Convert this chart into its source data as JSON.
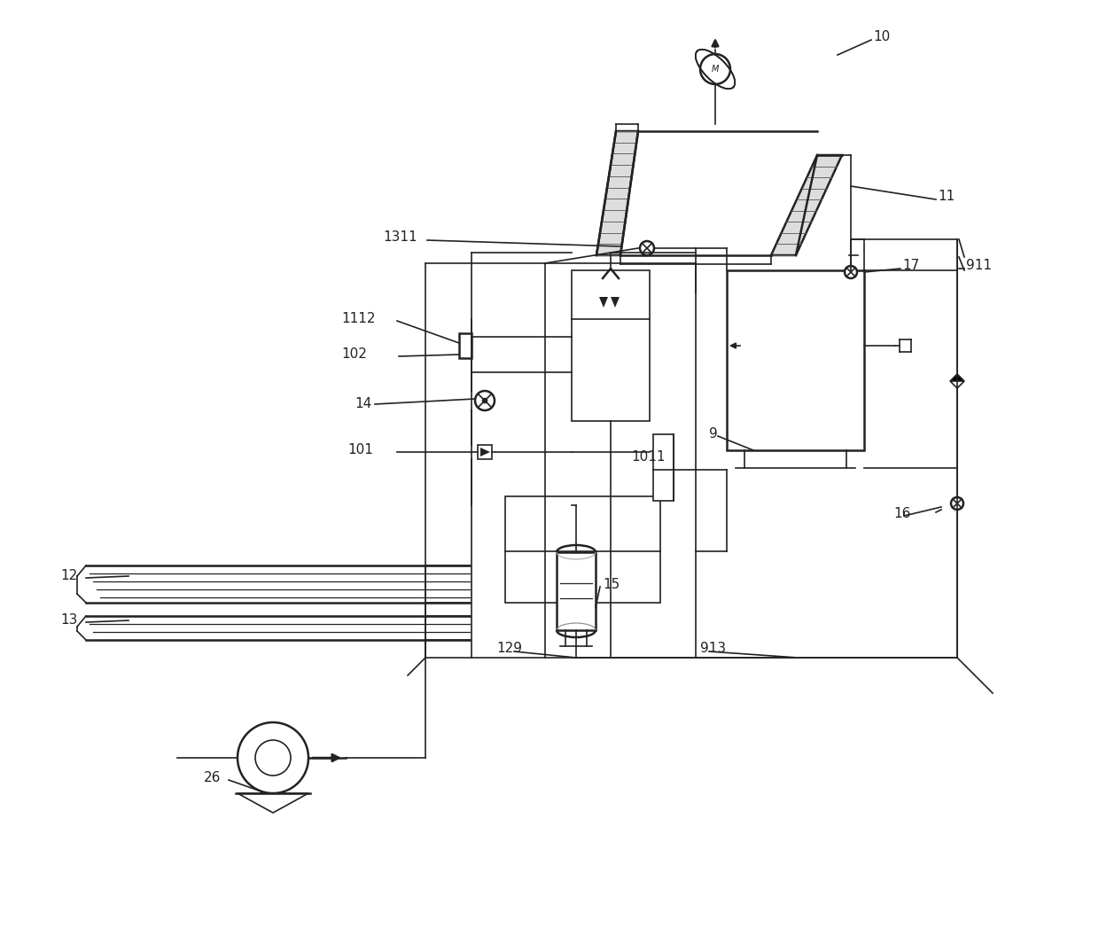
{
  "bg": "#ffffff",
  "lc": "#222222",
  "lw": 1.2,
  "lw2": 1.8,
  "lw3": 2.2
}
